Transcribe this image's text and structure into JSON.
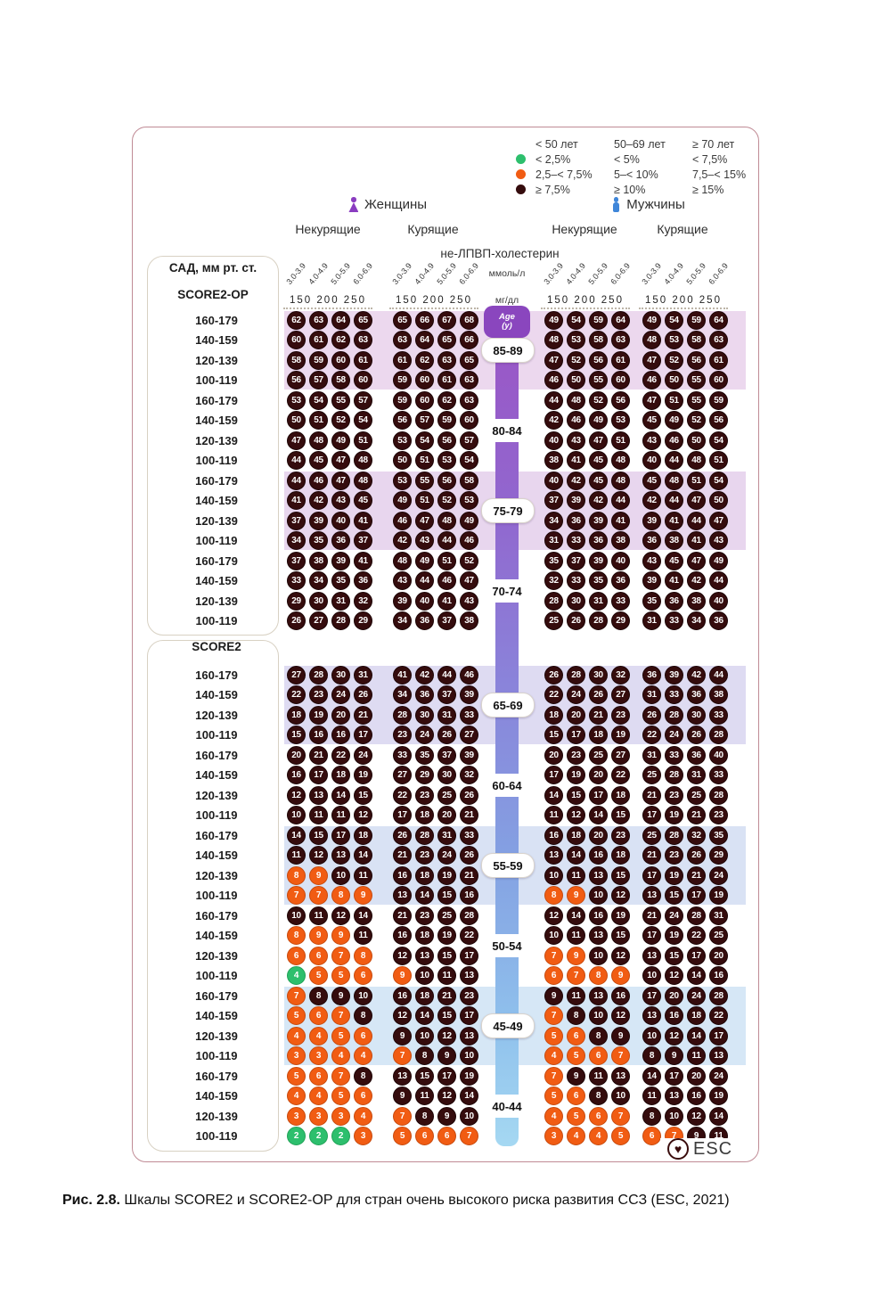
{
  "page": {
    "caption_bold": "Рис. 2.8.",
    "caption_rest": " Шкалы SCORE2 и SCORE2-OP для стран очень высокого риска развития ССЗ (ESC, 2021)"
  },
  "legend": {
    "col_headers": [
      "< 50 лет",
      "50–69 лет",
      "≥ 70 лет"
    ],
    "rows": [
      {
        "color": "#2dbf6d",
        "cells": [
          "< 2,5%",
          "< 5%",
          "< 7,5%"
        ]
      },
      {
        "color": "#f15c13",
        "cells": [
          "2,5–< 7,5%",
          "5–< 10%",
          "7,5–< 15%"
        ]
      },
      {
        "color": "#350c0d",
        "cells": [
          "≥ 7,5%",
          "≥ 10%",
          "≥ 15%"
        ]
      }
    ]
  },
  "header": {
    "women": "Женщины",
    "men": "Мужчины",
    "nonsmokers": "Некурящие",
    "smokers": "Курящие",
    "chol": "не-ЛПВП-холестерин",
    "mmol": "ммоль/л",
    "mgdl": "мг/дл",
    "ticks": [
      "3.0-3.9",
      "4.0-4.9",
      "5.0-5.9",
      "6.0-6.9"
    ],
    "mgdl_ticks": "150 200 250",
    "sbp": "САД, мм рт. ст.",
    "score2op": "SCORE2-OP",
    "score2": "SCORE2",
    "age_badge_line1": "Age",
    "age_badge_line2": "(y)"
  },
  "footer": {
    "esc": "ESC",
    "heart_icon": "♥"
  },
  "sbp_rows": [
    "160-179",
    "140-159",
    "120-139",
    "100-119"
  ],
  "color_map": {
    "d": "dark ≥ high-risk",
    "o": "orange moderate",
    "g": "green low"
  },
  "bands": [
    {
      "age": "85-89",
      "section": "SCORE2-OP",
      "pill": true,
      "stripe": "#ecd8ee",
      "wns": [
        [
          "62d",
          "63d",
          "64d",
          "65d"
        ],
        [
          "60d",
          "61d",
          "62d",
          "63d"
        ],
        [
          "58d",
          "59d",
          "60d",
          "61d"
        ],
        [
          "56d",
          "57d",
          "58d",
          "60d"
        ]
      ],
      "wsm": [
        [
          "65d",
          "66d",
          "67d",
          "68d"
        ],
        [
          "63d",
          "64d",
          "65d",
          "66d"
        ],
        [
          "61d",
          "62d",
          "63d",
          "65d"
        ],
        [
          "59d",
          "60d",
          "61d",
          "63d"
        ]
      ],
      "mns": [
        [
          "49d",
          "54d",
          "59d",
          "64d"
        ],
        [
          "48d",
          "53d",
          "58d",
          "63d"
        ],
        [
          "47d",
          "52d",
          "56d",
          "61d"
        ],
        [
          "46d",
          "50d",
          "55d",
          "60d"
        ]
      ],
      "msm": [
        [
          "49d",
          "54d",
          "59d",
          "64d"
        ],
        [
          "48d",
          "53d",
          "58d",
          "63d"
        ],
        [
          "47d",
          "52d",
          "56d",
          "61d"
        ],
        [
          "46d",
          "50d",
          "55d",
          "60d"
        ]
      ]
    },
    {
      "age": "80-84",
      "section": "SCORE2-OP",
      "pill": false,
      "stripe": null,
      "wns": [
        [
          "53d",
          "54d",
          "55d",
          "57d"
        ],
        [
          "50d",
          "51d",
          "52d",
          "54d"
        ],
        [
          "47d",
          "48d",
          "49d",
          "51d"
        ],
        [
          "44d",
          "45d",
          "47d",
          "48d"
        ]
      ],
      "wsm": [
        [
          "59d",
          "60d",
          "62d",
          "63d"
        ],
        [
          "56d",
          "57d",
          "59d",
          "60d"
        ],
        [
          "53d",
          "54d",
          "56d",
          "57d"
        ],
        [
          "50d",
          "51d",
          "53d",
          "54d"
        ]
      ],
      "mns": [
        [
          "44d",
          "48d",
          "52d",
          "56d"
        ],
        [
          "42d",
          "46d",
          "49d",
          "53d"
        ],
        [
          "40d",
          "43d",
          "47d",
          "51d"
        ],
        [
          "38d",
          "41d",
          "45d",
          "48d"
        ]
      ],
      "msm": [
        [
          "47d",
          "51d",
          "55d",
          "59d"
        ],
        [
          "45d",
          "49d",
          "52d",
          "56d"
        ],
        [
          "43d",
          "46d",
          "50d",
          "54d"
        ],
        [
          "40d",
          "44d",
          "48d",
          "51d"
        ]
      ]
    },
    {
      "age": "75-79",
      "section": "SCORE2-OP",
      "pill": true,
      "stripe": "#e8d6ee",
      "wns": [
        [
          "44d",
          "46d",
          "47d",
          "48d"
        ],
        [
          "41d",
          "42d",
          "43d",
          "45d"
        ],
        [
          "37d",
          "39d",
          "40d",
          "41d"
        ],
        [
          "34d",
          "35d",
          "36d",
          "37d"
        ]
      ],
      "wsm": [
        [
          "53d",
          "55d",
          "56d",
          "58d"
        ],
        [
          "49d",
          "51d",
          "52d",
          "53d"
        ],
        [
          "46d",
          "47d",
          "48d",
          "49d"
        ],
        [
          "42d",
          "43d",
          "44d",
          "46d"
        ]
      ],
      "mns": [
        [
          "40d",
          "42d",
          "45d",
          "48d"
        ],
        [
          "37d",
          "39d",
          "42d",
          "44d"
        ],
        [
          "34d",
          "36d",
          "39d",
          "41d"
        ],
        [
          "31d",
          "33d",
          "36d",
          "38d"
        ]
      ],
      "msm": [
        [
          "45d",
          "48d",
          "51d",
          "54d"
        ],
        [
          "42d",
          "44d",
          "47d",
          "50d"
        ],
        [
          "39d",
          "41d",
          "44d",
          "47d"
        ],
        [
          "36d",
          "38d",
          "41d",
          "43d"
        ]
      ]
    },
    {
      "age": "70-74",
      "section": "SCORE2-OP",
      "pill": false,
      "stripe": null,
      "wns": [
        [
          "37d",
          "38d",
          "39d",
          "41d"
        ],
        [
          "33d",
          "34d",
          "35d",
          "36d"
        ],
        [
          "29d",
          "30d",
          "31d",
          "32d"
        ],
        [
          "26d",
          "27d",
          "28d",
          "29d"
        ]
      ],
      "wsm": [
        [
          "48d",
          "49d",
          "51d",
          "52d"
        ],
        [
          "43d",
          "44d",
          "46d",
          "47d"
        ],
        [
          "39d",
          "40d",
          "41d",
          "43d"
        ],
        [
          "34d",
          "36d",
          "37d",
          "38d"
        ]
      ],
      "mns": [
        [
          "35d",
          "37d",
          "39d",
          "40d"
        ],
        [
          "32d",
          "33d",
          "35d",
          "36d"
        ],
        [
          "28d",
          "30d",
          "31d",
          "33d"
        ],
        [
          "25d",
          "26d",
          "28d",
          "29d"
        ]
      ],
      "msm": [
        [
          "43d",
          "45d",
          "47d",
          "49d"
        ],
        [
          "39d",
          "41d",
          "42d",
          "44d"
        ],
        [
          "35d",
          "36d",
          "38d",
          "40d"
        ],
        [
          "31d",
          "33d",
          "34d",
          "36d"
        ]
      ]
    },
    {
      "age": "65-69",
      "section": "SCORE2",
      "pill": true,
      "stripe": "#dedbf2",
      "wns": [
        [
          "27d",
          "28d",
          "30d",
          "31d"
        ],
        [
          "22d",
          "23d",
          "24d",
          "26d"
        ],
        [
          "18d",
          "19d",
          "20d",
          "21d"
        ],
        [
          "15d",
          "16d",
          "16d",
          "17d"
        ]
      ],
      "wsm": [
        [
          "41d",
          "42d",
          "44d",
          "46d"
        ],
        [
          "34d",
          "36d",
          "37d",
          "39d"
        ],
        [
          "28d",
          "30d",
          "31d",
          "33d"
        ],
        [
          "23d",
          "24d",
          "26d",
          "27d"
        ]
      ],
      "mns": [
        [
          "26d",
          "28d",
          "30d",
          "32d"
        ],
        [
          "22d",
          "24d",
          "26d",
          "27d"
        ],
        [
          "18d",
          "20d",
          "21d",
          "23d"
        ],
        [
          "15d",
          "17d",
          "18d",
          "19d"
        ]
      ],
      "msm": [
        [
          "36d",
          "39d",
          "42d",
          "44d"
        ],
        [
          "31d",
          "33d",
          "36d",
          "38d"
        ],
        [
          "26d",
          "28d",
          "30d",
          "33d"
        ],
        [
          "22d",
          "24d",
          "26d",
          "28d"
        ]
      ]
    },
    {
      "age": "60-64",
      "section": "SCORE2",
      "pill": false,
      "stripe": null,
      "wns": [
        [
          "20d",
          "21d",
          "22d",
          "24d"
        ],
        [
          "16d",
          "17d",
          "18d",
          "19d"
        ],
        [
          "12d",
          "13d",
          "14d",
          "15d"
        ],
        [
          "10d",
          "11d",
          "11d",
          "12d"
        ]
      ],
      "wsm": [
        [
          "33d",
          "35d",
          "37d",
          "39d"
        ],
        [
          "27d",
          "29d",
          "30d",
          "32d"
        ],
        [
          "22d",
          "23d",
          "25d",
          "26d"
        ],
        [
          "17d",
          "18d",
          "20d",
          "21d"
        ]
      ],
      "mns": [
        [
          "20d",
          "23d",
          "25d",
          "27d"
        ],
        [
          "17d",
          "19d",
          "20d",
          "22d"
        ],
        [
          "14d",
          "15d",
          "17d",
          "18d"
        ],
        [
          "11d",
          "12d",
          "14d",
          "15d"
        ]
      ],
      "msm": [
        [
          "31d",
          "33d",
          "36d",
          "40d"
        ],
        [
          "25d",
          "28d",
          "31d",
          "33d"
        ],
        [
          "21d",
          "23d",
          "25d",
          "28d"
        ],
        [
          "17d",
          "19d",
          "21d",
          "23d"
        ]
      ]
    },
    {
      "age": "55-59",
      "section": "SCORE2",
      "pill": true,
      "stripe": "#d9e2f4",
      "wns": [
        [
          "14d",
          "15d",
          "17d",
          "18d"
        ],
        [
          "11d",
          "12d",
          "13d",
          "14d"
        ],
        [
          "8o",
          "9o",
          "10d",
          "11d"
        ],
        [
          "7o",
          "7o",
          "8o",
          "9o"
        ]
      ],
      "wsm": [
        [
          "26d",
          "28d",
          "31d",
          "33d"
        ],
        [
          "21d",
          "23d",
          "24d",
          "26d"
        ],
        [
          "16d",
          "18d",
          "19d",
          "21d"
        ],
        [
          "13d",
          "14d",
          "15d",
          "16d"
        ]
      ],
      "mns": [
        [
          "16d",
          "18d",
          "20d",
          "23d"
        ],
        [
          "13d",
          "14d",
          "16d",
          "18d"
        ],
        [
          "10d",
          "11d",
          "13d",
          "15d"
        ],
        [
          "8o",
          "9o",
          "10d",
          "12d"
        ]
      ],
      "msm": [
        [
          "25d",
          "28d",
          "32d",
          "35d"
        ],
        [
          "21d",
          "23d",
          "26d",
          "29d"
        ],
        [
          "17d",
          "19d",
          "21d",
          "24d"
        ],
        [
          "13d",
          "15d",
          "17d",
          "19d"
        ]
      ]
    },
    {
      "age": "50-54",
      "section": "SCORE2",
      "pill": false,
      "stripe": null,
      "wns": [
        [
          "10d",
          "11d",
          "12d",
          "14d"
        ],
        [
          "8o",
          "9o",
          "9o",
          "11d"
        ],
        [
          "6o",
          "6o",
          "7o",
          "8o"
        ],
        [
          "4g",
          "5o",
          "5o",
          "6o"
        ]
      ],
      "wsm": [
        [
          "21d",
          "23d",
          "25d",
          "28d"
        ],
        [
          "16d",
          "18d",
          "19d",
          "22d"
        ],
        [
          "12d",
          "13d",
          "15d",
          "17d"
        ],
        [
          "9o",
          "10d",
          "11d",
          "13d"
        ]
      ],
      "mns": [
        [
          "12d",
          "14d",
          "16d",
          "19d"
        ],
        [
          "10d",
          "11d",
          "13d",
          "15d"
        ],
        [
          "7o",
          "9o",
          "10d",
          "12d"
        ],
        [
          "6o",
          "7o",
          "8o",
          "9o"
        ]
      ],
      "msm": [
        [
          "21d",
          "24d",
          "28d",
          "31d"
        ],
        [
          "17d",
          "19d",
          "22d",
          "25d"
        ],
        [
          "13d",
          "15d",
          "17d",
          "20d"
        ],
        [
          "10d",
          "12d",
          "14d",
          "16d"
        ]
      ]
    },
    {
      "age": "45-49",
      "section": "SCORE2",
      "pill": true,
      "stripe": "#d6e7f6",
      "wns": [
        [
          "7o",
          "8d",
          "9d",
          "10d"
        ],
        [
          "5o",
          "6o",
          "7o",
          "8d"
        ],
        [
          "4o",
          "4o",
          "5o",
          "6o"
        ],
        [
          "3o",
          "3o",
          "4o",
          "4o"
        ]
      ],
      "wsm": [
        [
          "16d",
          "18d",
          "21d",
          "23d"
        ],
        [
          "12d",
          "14d",
          "15d",
          "17d"
        ],
        [
          "9d",
          "10d",
          "12d",
          "13d"
        ],
        [
          "7o",
          "8d",
          "9d",
          "10d"
        ]
      ],
      "mns": [
        [
          "9d",
          "11d",
          "13d",
          "16d"
        ],
        [
          "7o",
          "8d",
          "10d",
          "12d"
        ],
        [
          "5o",
          "6o",
          "8d",
          "9d"
        ],
        [
          "4o",
          "5o",
          "6o",
          "7o"
        ]
      ],
      "msm": [
        [
          "17d",
          "20d",
          "24d",
          "28d"
        ],
        [
          "13d",
          "16d",
          "18d",
          "22d"
        ],
        [
          "10d",
          "12d",
          "14d",
          "17d"
        ],
        [
          "8d",
          "9d",
          "11d",
          "13d"
        ]
      ]
    },
    {
      "age": "40-44",
      "section": "SCORE2",
      "pill": false,
      "stripe": null,
      "wns": [
        [
          "5o",
          "6o",
          "7o",
          "8d"
        ],
        [
          "4o",
          "4o",
          "5o",
          "6o"
        ],
        [
          "3o",
          "3o",
          "3o",
          "4o"
        ],
        [
          "2g",
          "2g",
          "2g",
          "3o"
        ]
      ],
      "wsm": [
        [
          "13d",
          "15d",
          "17d",
          "19d"
        ],
        [
          "9d",
          "11d",
          "12d",
          "14d"
        ],
        [
          "7o",
          "8d",
          "9d",
          "10d"
        ],
        [
          "5o",
          "6o",
          "6o",
          "7o"
        ]
      ],
      "mns": [
        [
          "7o",
          "9d",
          "11d",
          "13d"
        ],
        [
          "5o",
          "6o",
          "8d",
          "10d"
        ],
        [
          "4o",
          "5o",
          "6o",
          "7o"
        ],
        [
          "3o",
          "4o",
          "4o",
          "5o"
        ]
      ],
      "msm": [
        [
          "14d",
          "17d",
          "20d",
          "24d"
        ],
        [
          "11d",
          "13d",
          "16d",
          "19d"
        ],
        [
          "8d",
          "10d",
          "12d",
          "14d"
        ],
        [
          "6o",
          "7o",
          "9d",
          "11d"
        ]
      ]
    }
  ]
}
